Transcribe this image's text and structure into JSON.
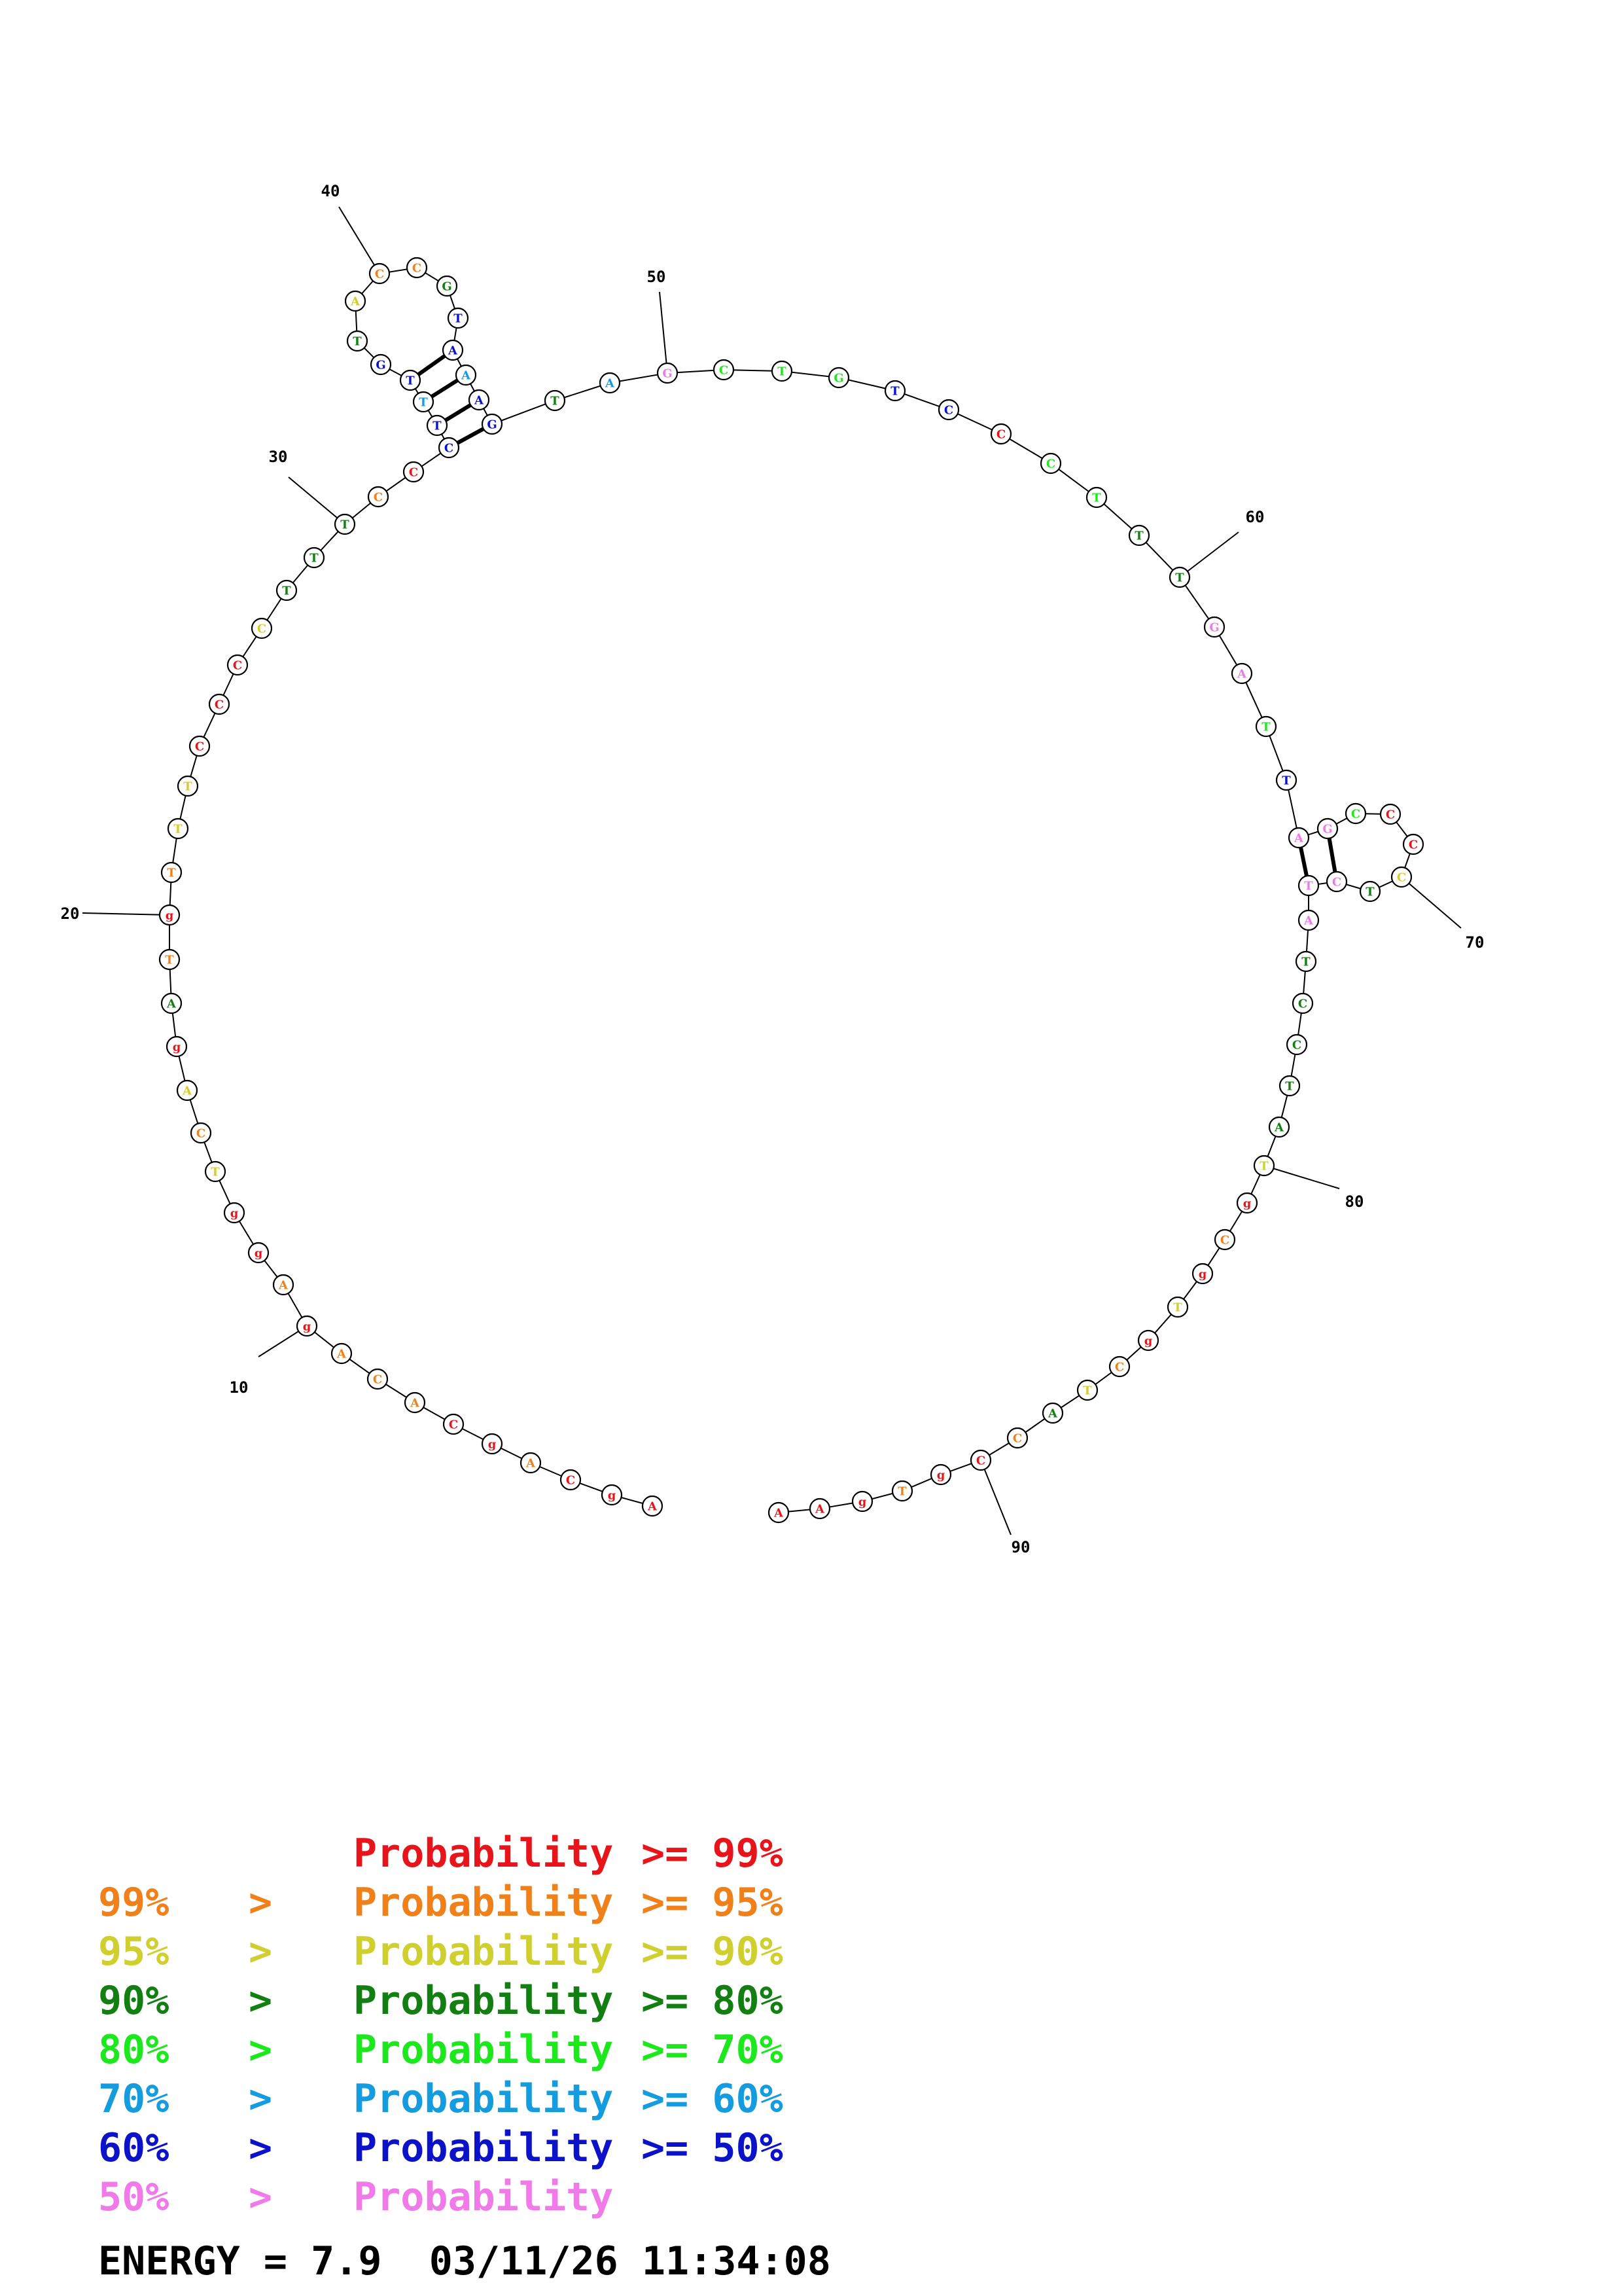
{
  "colors": {
    "red": "#e8141b",
    "orange": "#f0801a",
    "yellow": "#cfcf30",
    "darkgreen": "#137f13",
    "green": "#1de81d",
    "cyan": "#159cdf",
    "blue": "#0c12c7",
    "pink": "#f07ae8"
  },
  "legend": [
    {
      "left": "",
      "op": "",
      "label": "Probability",
      "right": ">= 99%",
      "color": "red"
    },
    {
      "left": "99%",
      "op": ">",
      "label": "Probability",
      "right": ">= 95%",
      "color": "orange"
    },
    {
      "left": "95%",
      "op": ">",
      "label": "Probability",
      "right": ">= 90%",
      "color": "yellow"
    },
    {
      "left": "90%",
      "op": ">",
      "label": "Probability",
      "right": ">= 80%",
      "color": "darkgreen"
    },
    {
      "left": "80%",
      "op": ">",
      "label": "Probability",
      "right": ">= 70%",
      "color": "green"
    },
    {
      "left": "70%",
      "op": ">",
      "label": "Probability",
      "right": ">= 60%",
      "color": "cyan"
    },
    {
      "left": "60%",
      "op": ">",
      "label": "Probability",
      "right": ">= 50%",
      "color": "blue"
    },
    {
      "left": "50%",
      "op": ">",
      "label": "Probability",
      "right": "",
      "color": "pink"
    }
  ],
  "footer": {
    "energy": "ENERGY = 7.9",
    "datetime": "03/11/26 11:34:08"
  },
  "tick_numbers": [
    10,
    20,
    30,
    40,
    50,
    60,
    70,
    80,
    90
  ],
  "sequence": [
    {
      "n": 1,
      "b": "A",
      "c": "red"
    },
    {
      "n": 2,
      "b": "g",
      "c": "red"
    },
    {
      "n": 3,
      "b": "C",
      "c": "red"
    },
    {
      "n": 4,
      "b": "A",
      "c": "orange"
    },
    {
      "n": 5,
      "b": "g",
      "c": "red"
    },
    {
      "n": 6,
      "b": "C",
      "c": "red"
    },
    {
      "n": 7,
      "b": "A",
      "c": "orange"
    },
    {
      "n": 8,
      "b": "C",
      "c": "orange"
    },
    {
      "n": 9,
      "b": "A",
      "c": "orange"
    },
    {
      "n": 10,
      "b": "g",
      "c": "red"
    },
    {
      "n": 11,
      "b": "A",
      "c": "orange"
    },
    {
      "n": 12,
      "b": "g",
      "c": "red"
    },
    {
      "n": 13,
      "b": "g",
      "c": "red"
    },
    {
      "n": 14,
      "b": "T",
      "c": "yellow"
    },
    {
      "n": 15,
      "b": "C",
      "c": "orange"
    },
    {
      "n": 16,
      "b": "A",
      "c": "yellow"
    },
    {
      "n": 17,
      "b": "g",
      "c": "red"
    },
    {
      "n": 18,
      "b": "A",
      "c": "darkgreen"
    },
    {
      "n": 19,
      "b": "T",
      "c": "orange"
    },
    {
      "n": 20,
      "b": "g",
      "c": "red"
    },
    {
      "n": 21,
      "b": "T",
      "c": "orange"
    },
    {
      "n": 22,
      "b": "T",
      "c": "yellow"
    },
    {
      "n": 23,
      "b": "T",
      "c": "yellow"
    },
    {
      "n": 24,
      "b": "C",
      "c": "red"
    },
    {
      "n": 25,
      "b": "C",
      "c": "red"
    },
    {
      "n": 26,
      "b": "C",
      "c": "red"
    },
    {
      "n": 27,
      "b": "C",
      "c": "yellow"
    },
    {
      "n": 28,
      "b": "T",
      "c": "darkgreen"
    },
    {
      "n": 29,
      "b": "T",
      "c": "darkgreen"
    },
    {
      "n": 30,
      "b": "T",
      "c": "darkgreen"
    },
    {
      "n": 31,
      "b": "C",
      "c": "orange"
    },
    {
      "n": 32,
      "b": "C",
      "c": "red"
    },
    {
      "n": 33,
      "b": "C",
      "c": "blue"
    },
    {
      "n": 34,
      "b": "T",
      "c": "blue"
    },
    {
      "n": 35,
      "b": "T",
      "c": "cyan"
    },
    {
      "n": 36,
      "b": "T",
      "c": "blue"
    },
    {
      "n": 37,
      "b": "G",
      "c": "blue"
    },
    {
      "n": 38,
      "b": "T",
      "c": "darkgreen"
    },
    {
      "n": 39,
      "b": "A",
      "c": "yellow"
    },
    {
      "n": 40,
      "b": "C",
      "c": "orange"
    },
    {
      "n": 41,
      "b": "C",
      "c": "orange"
    },
    {
      "n": 42,
      "b": "G",
      "c": "darkgreen"
    },
    {
      "n": 43,
      "b": "T",
      "c": "blue"
    },
    {
      "n": 44,
      "b": "A",
      "c": "blue"
    },
    {
      "n": 45,
      "b": "A",
      "c": "cyan"
    },
    {
      "n": 46,
      "b": "A",
      "c": "blue"
    },
    {
      "n": 47,
      "b": "G",
      "c": "blue"
    },
    {
      "n": 48,
      "b": "T",
      "c": "darkgreen"
    },
    {
      "n": 49,
      "b": "A",
      "c": "cyan"
    },
    {
      "n": 50,
      "b": "G",
      "c": "pink"
    },
    {
      "n": 51,
      "b": "C",
      "c": "green"
    },
    {
      "n": 52,
      "b": "T",
      "c": "green"
    },
    {
      "n": 53,
      "b": "G",
      "c": "green"
    },
    {
      "n": 54,
      "b": "T",
      "c": "blue"
    },
    {
      "n": 55,
      "b": "C",
      "c": "blue"
    },
    {
      "n": 56,
      "b": "C",
      "c": "red"
    },
    {
      "n": 57,
      "b": "C",
      "c": "green"
    },
    {
      "n": 58,
      "b": "T",
      "c": "green"
    },
    {
      "n": 59,
      "b": "T",
      "c": "darkgreen"
    },
    {
      "n": 60,
      "b": "T",
      "c": "darkgreen"
    },
    {
      "n": 61,
      "b": "G",
      "c": "pink"
    },
    {
      "n": 62,
      "b": "A",
      "c": "pink"
    },
    {
      "n": 63,
      "b": "T",
      "c": "green"
    },
    {
      "n": 64,
      "b": "T",
      "c": "blue"
    },
    {
      "n": 65,
      "b": "A",
      "c": "pink"
    },
    {
      "n": 66,
      "b": "G",
      "c": "pink"
    },
    {
      "n": 67,
      "b": "C",
      "c": "green"
    },
    {
      "n": 68,
      "b": "C",
      "c": "red"
    },
    {
      "n": 69,
      "b": "C",
      "c": "red"
    },
    {
      "n": 70,
      "b": "C",
      "c": "yellow"
    },
    {
      "n": 71,
      "b": "T",
      "c": "darkgreen"
    },
    {
      "n": 72,
      "b": "C",
      "c": "pink"
    },
    {
      "n": 73,
      "b": "T",
      "c": "pink"
    },
    {
      "n": 74,
      "b": "A",
      "c": "pink"
    },
    {
      "n": 75,
      "b": "T",
      "c": "darkgreen"
    },
    {
      "n": 76,
      "b": "C",
      "c": "darkgreen"
    },
    {
      "n": 77,
      "b": "C",
      "c": "darkgreen"
    },
    {
      "n": 78,
      "b": "T",
      "c": "darkgreen"
    },
    {
      "n": 79,
      "b": "A",
      "c": "darkgreen"
    },
    {
      "n": 80,
      "b": "T",
      "c": "yellow"
    },
    {
      "n": 81,
      "b": "g",
      "c": "red"
    },
    {
      "n": 82,
      "b": "C",
      "c": "orange"
    },
    {
      "n": 83,
      "b": "g",
      "c": "red"
    },
    {
      "n": 84,
      "b": "T",
      "c": "yellow"
    },
    {
      "n": 85,
      "b": "g",
      "c": "red"
    },
    {
      "n": 86,
      "b": "C",
      "c": "orange"
    },
    {
      "n": 87,
      "b": "T",
      "c": "yellow"
    },
    {
      "n": 88,
      "b": "A",
      "c": "darkgreen"
    },
    {
      "n": 89,
      "b": "C",
      "c": "orange"
    },
    {
      "n": 90,
      "b": "C",
      "c": "red"
    },
    {
      "n": 91,
      "b": "g",
      "c": "red"
    },
    {
      "n": 92,
      "b": "T",
      "c": "orange"
    },
    {
      "n": 93,
      "b": "g",
      "c": "red"
    },
    {
      "n": 94,
      "b": "A",
      "c": "red"
    },
    {
      "n": 95,
      "b": "A",
      "c": "red"
    }
  ],
  "pairs": [
    [
      33,
      47
    ],
    [
      34,
      46
    ],
    [
      35,
      45
    ],
    [
      36,
      44
    ],
    [
      65,
      73
    ],
    [
      66,
      72
    ]
  ]
}
